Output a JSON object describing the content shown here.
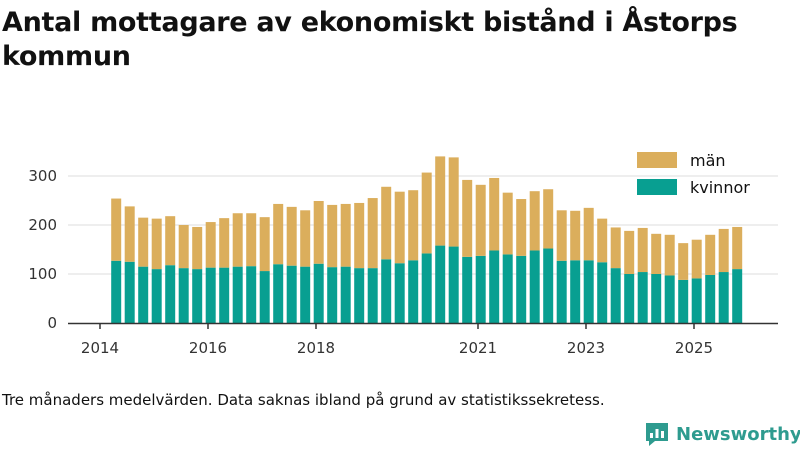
{
  "title": "Antal mottagare av ekonomiskt bistånd i Åstorps kommun",
  "footnote": "Tre månaders medelvärden. Data saknas ibland på grund av statistikssekretess.",
  "brand": "Newsworthy",
  "colors": {
    "man": "#dbae5c",
    "kvinnor": "#089f91",
    "axis": "#333333",
    "grid": "#dddddd",
    "brand": "#2e9b8f"
  },
  "chart_data": {
    "type": "bar",
    "stacked": true,
    "title": "Antal mottagare av ekonomiskt bistånd i Åstorps kommun",
    "xlabel": "",
    "ylabel": "",
    "ylim": [
      0,
      350
    ],
    "yticks": [
      0,
      100,
      200,
      300
    ],
    "xticks": [
      "2014",
      "2016",
      "2018",
      "2021",
      "2023",
      "2025"
    ],
    "xlim_years": [
      2013.95,
      2026.4
    ],
    "grid": true,
    "legend_position": "top-right",
    "x": [
      2014.3,
      2014.55,
      2014.8,
      2015.05,
      2015.3,
      2015.55,
      2015.8,
      2016.05,
      2016.3,
      2016.55,
      2016.8,
      2017.05,
      2017.3,
      2017.55,
      2017.8,
      2018.05,
      2018.3,
      2018.55,
      2018.8,
      2019.05,
      2019.3,
      2019.55,
      2019.8,
      2020.05,
      2020.3,
      2020.55,
      2020.8,
      2021.05,
      2021.3,
      2021.55,
      2021.8,
      2022.05,
      2022.3,
      2022.55,
      2022.8,
      2023.05,
      2023.3,
      2023.55,
      2023.8,
      2024.05,
      2024.3,
      2024.55,
      2024.8,
      2025.05,
      2025.3,
      2025.55,
      2025.8,
      2026.05
    ],
    "series": [
      {
        "name": "kvinnor",
        "values": [
          127,
          125,
          115,
          110,
          118,
          112,
          110,
          113,
          113,
          115,
          116,
          106,
          120,
          117,
          115,
          121,
          114,
          115,
          112,
          112,
          130,
          122,
          128,
          142,
          158,
          156,
          135,
          137,
          148,
          140,
          137,
          148,
          152,
          127,
          128,
          128,
          124,
          112,
          100,
          104,
          100,
          97,
          88,
          91,
          98,
          104,
          110,
          0
        ]
      },
      {
        "name": "män",
        "values": [
          127,
          113,
          100,
          103,
          100,
          88,
          86,
          93,
          101,
          109,
          108,
          110,
          123,
          120,
          115,
          128,
          127,
          128,
          133,
          143,
          148,
          146,
          143,
          165,
          182,
          182,
          157,
          145,
          148,
          126,
          116,
          121,
          121,
          103,
          101,
          107,
          89,
          83,
          88,
          90,
          82,
          83,
          75,
          79,
          82,
          88,
          86,
          0
        ]
      }
    ],
    "legend": [
      "män",
      "kvinnor"
    ]
  }
}
